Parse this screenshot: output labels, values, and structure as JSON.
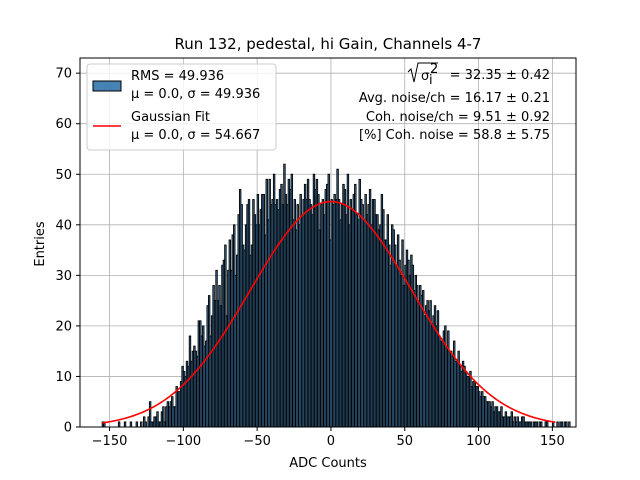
{
  "chart_data": {
    "type": "bar",
    "title": "Run 132, pedestal, hi Gain, Channels 4-7",
    "xlabel": "ADC Counts",
    "ylabel": "Entries",
    "xlim": [
      -170,
      166
    ],
    "ylim": [
      0,
      73
    ],
    "xticks": [
      -150,
      -100,
      -50,
      0,
      50,
      100,
      150
    ],
    "yticks": [
      0,
      10,
      20,
      30,
      40,
      50,
      60,
      70
    ],
    "grid": true,
    "legend_position": "top-left",
    "histogram": {
      "name": "RMS = 49.936",
      "stats": "μ = 0.0, σ = 49.936",
      "bin_width": 1,
      "color": "#4682b4",
      "edge_color": "#000000",
      "x_range": [
        -155,
        152
      ],
      "values": [
        1,
        1,
        0,
        0,
        0,
        0,
        0,
        0,
        0,
        0,
        0,
        1,
        0,
        0,
        0,
        1,
        0,
        0,
        0,
        1,
        0,
        0,
        0,
        1,
        0,
        0,
        1,
        0,
        2,
        1,
        0,
        2,
        5,
        1,
        1,
        2,
        2,
        3,
        1,
        1,
        3,
        4,
        1,
        4,
        5,
        4,
        5,
        6,
        4,
        4,
        8,
        7,
        7,
        9,
        12,
        11,
        10,
        13,
        12,
        18,
        13,
        15,
        16,
        15,
        14,
        21,
        21,
        18,
        20,
        16,
        17,
        24,
        26,
        18,
        22,
        28,
        25,
        31,
        25,
        28,
        24,
        32,
        33,
        36,
        22,
        31,
        37,
        31,
        38,
        40,
        30,
        34,
        42,
        47,
        44,
        36,
        35,
        40,
        44,
        45,
        34,
        36,
        45,
        42,
        40,
        46,
        40,
        43,
        46,
        46,
        38,
        49,
        41,
        49,
        44,
        45,
        50,
        44,
        45,
        43,
        47,
        48,
        44,
        52,
        46,
        44,
        49,
        47,
        50,
        41,
        45,
        39,
        44,
        40,
        46,
        42,
        45,
        48,
        45,
        49,
        45,
        44,
        42,
        50,
        47,
        49,
        46,
        39,
        44,
        45,
        42,
        47,
        48,
        50,
        37,
        45,
        44,
        46,
        45,
        51,
        45,
        41,
        44,
        48,
        47,
        42,
        50,
        40,
        45,
        43,
        46,
        48,
        42,
        41,
        49,
        45,
        44,
        41,
        46,
        42,
        44,
        47,
        40,
        45,
        45,
        42,
        42,
        39,
        40,
        46,
        43,
        37,
        37,
        42,
        36,
        32,
        40,
        39,
        36,
        32,
        38,
        33,
        30,
        37,
        28,
        32,
        35,
        33,
        30,
        34,
        32,
        27,
        30,
        28,
        25,
        28,
        26,
        27,
        22,
        24,
        25,
        23,
        25,
        20,
        22,
        24,
        20,
        23,
        18,
        17,
        17,
        19,
        20,
        16,
        19,
        15,
        15,
        14,
        17,
        13,
        13,
        15,
        12,
        11,
        13,
        12,
        11,
        10,
        10,
        11,
        8,
        9,
        9,
        8,
        8,
        7,
        6,
        7,
        6,
        6,
        5,
        5,
        5,
        4,
        5,
        3,
        4,
        4,
        3,
        3,
        4,
        2,
        2,
        3,
        2,
        2,
        2,
        3,
        1,
        2,
        1,
        2,
        1,
        1,
        2,
        2,
        1,
        1,
        1,
        1,
        1,
        0,
        1,
        1,
        1,
        0,
        1,
        1,
        0,
        0,
        1,
        1,
        0,
        0,
        0,
        1,
        0,
        0,
        1,
        0,
        1,
        1,
        0,
        1,
        1,
        0,
        1
      ]
    },
    "gaussian_fit": {
      "name": "Gaussian Fit",
      "stats": "μ = 0.0, σ = 54.667",
      "mu": 0.0,
      "sigma": 54.667,
      "amplitude": 44.6,
      "x_range": [
        -155,
        152
      ],
      "color": "#ff0000"
    },
    "annotations": [
      {
        "prefix": "",
        "root_label": "σ",
        "root_sub": "i",
        "root_sup": "2",
        "suffix": " = 32.35 ± 0.42"
      },
      {
        "text": "Avg. noise/ch = 16.17 ± 0.21"
      },
      {
        "text": "Coh. noise/ch = 9.51 ± 0.92"
      },
      {
        "text": "[%] Coh. noise = 58.8 ± 5.75"
      }
    ]
  }
}
